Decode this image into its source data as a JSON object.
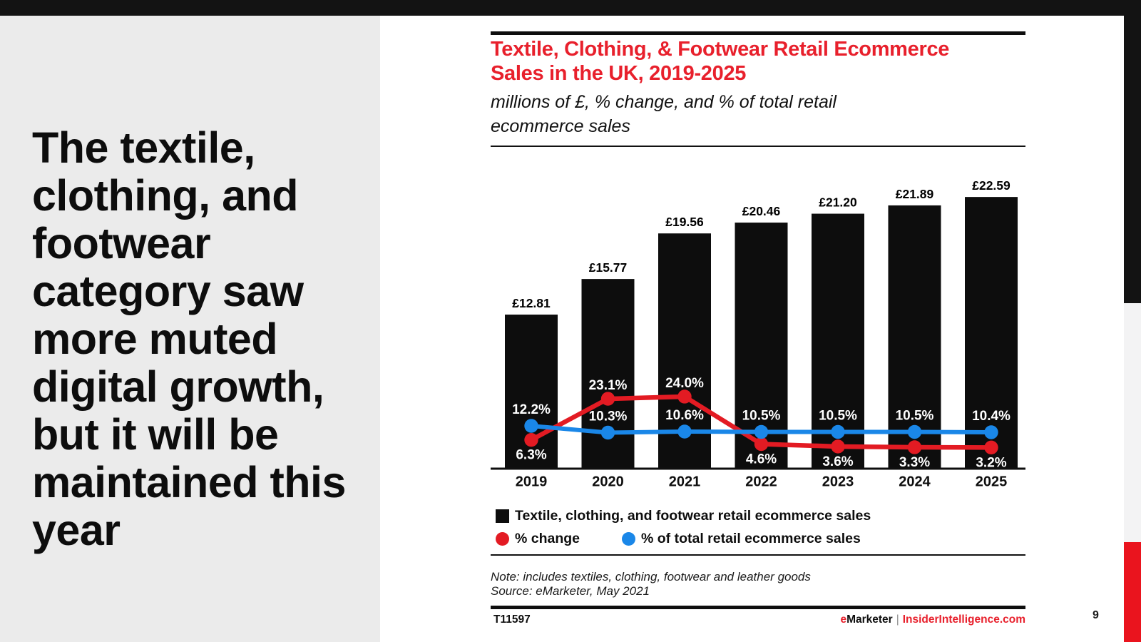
{
  "page": {
    "page_number": "9"
  },
  "sidebar": {
    "headline_lines": [
      "The textile,",
      "clothing, and",
      "footwear",
      "category saw",
      "more muted",
      "digital growth,",
      "but it will be",
      "maintained this",
      "year"
    ]
  },
  "chart": {
    "title_lines": [
      "Textile, Clothing, & Footwear Retail Ecommerce",
      "Sales in the UK, 2019-2025"
    ],
    "subtitle_lines": [
      "millions of £, % change, and % of total retail",
      "ecommerce sales"
    ],
    "note": "Note: includes textiles, clothing, footwear and leather goods",
    "source": "Source: eMarketer, May 2021",
    "footer": {
      "t_number": "T11597",
      "brand_e": "e",
      "brand_rest": "Marketer",
      "separator": "|",
      "site": "InsiderIntelligence.com"
    },
    "legend": [
      {
        "marker": "square",
        "color": "#0d0d0d",
        "label": "Textile, clothing, and footwear retail ecommerce sales"
      },
      {
        "marker": "circle",
        "color": "#e31b23",
        "label": "% change"
      },
      {
        "marker": "circle",
        "color": "#1a87e8",
        "label": "% of total retail ecommerce sales"
      }
    ],
    "colors": {
      "accent_red": "#e8202c",
      "line_red": "#e31b23",
      "line_blue": "#1a87e8",
      "bar_black": "#0d0d0d",
      "sidebar_gray": "#ebebeb",
      "strip_red": "#ea141e",
      "top_bar_black": "#131313"
    }
  },
  "chart_data": {
    "type": "combo-bar-line",
    "categories": [
      "2019",
      "2020",
      "2021",
      "2022",
      "2023",
      "2024",
      "2025"
    ],
    "series": [
      {
        "name": "Textile, clothing, and footwear retail ecommerce sales",
        "type": "bar",
        "unit_label": "£ (shown as millions of £)",
        "values": [
          12.81,
          15.77,
          19.56,
          20.46,
          21.2,
          21.89,
          22.59
        ],
        "labels": [
          "£12.81",
          "£15.77",
          "£19.56",
          "£20.46",
          "£21.20",
          "£21.89",
          "£22.59"
        ],
        "color": "#0d0d0d"
      },
      {
        "name": "% change",
        "type": "line",
        "values": [
          6.3,
          23.1,
          24.0,
          4.6,
          3.6,
          3.3,
          3.2
        ],
        "labels": [
          "6.3%",
          "23.1%",
          "24.0%",
          "4.6%",
          "3.6%",
          "3.3%",
          "3.2%"
        ],
        "label_side": [
          "below",
          "above",
          "above",
          "below",
          "below",
          "below",
          "below"
        ],
        "color": "#e31b23"
      },
      {
        "name": "% of total retail ecommerce sales",
        "type": "line",
        "values": [
          12.2,
          10.3,
          10.6,
          10.5,
          10.5,
          10.5,
          10.4
        ],
        "labels": [
          "12.2%",
          "10.3%",
          "10.6%",
          "10.5%",
          "10.5%",
          "10.5%",
          "10.4%"
        ],
        "label_side": [
          "above",
          "above",
          "above",
          "above",
          "above",
          "above",
          "above"
        ],
        "color": "#1a87e8"
      }
    ],
    "grid": false,
    "legend_position": "bottom"
  }
}
